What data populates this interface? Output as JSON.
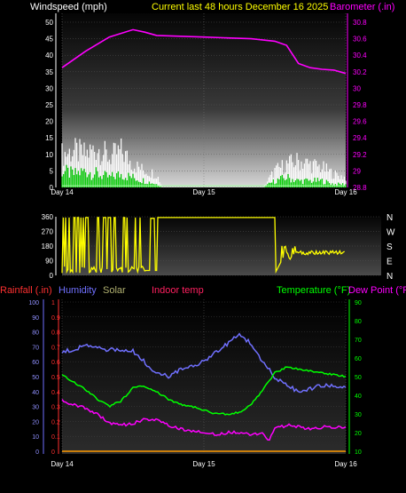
{
  "header": {
    "wind_label": "Windspeed (mph)",
    "title": "Current last 48 hours December 16 2025",
    "baro_label": "Barometer (.in)"
  },
  "legend2": {
    "rainfall": "Rainfall (.in)",
    "humidity": "Humidity",
    "solar": "Solar",
    "indoor": "Indoor temp",
    "temperature": "Temperature (°F)",
    "dewpoint": "Dew Point (°F"
  },
  "colors": {
    "wind_label": "#ffffff",
    "title": "#ffff00",
    "baro": "#ff00ff",
    "rain": "#ff3030",
    "humidity": "#7070ff",
    "solar": "#b0b070",
    "indoor": "#ff2060",
    "temperature": "#00ff00",
    "dewpoint": "#ff00ff",
    "winddir": "#ffff00",
    "gust": "#ffffff",
    "wind_avg": "#00cc00"
  },
  "chart_data": [
    {
      "type": "area",
      "name": "wind-barometer",
      "x_ticks": [
        "Day 14",
        "Day 15",
        "Day 16"
      ],
      "y_left_label": "Windspeed (mph)",
      "y_left_ticks": [
        "0",
        "5",
        "10",
        "15",
        "20",
        "25",
        "30",
        "35",
        "40",
        "45",
        "50"
      ],
      "y_left_lim": [
        0,
        50
      ],
      "y_right_label": "Barometer (.in)",
      "y_right_ticks": [
        "28.8",
        "29",
        "29.2",
        "29.4",
        "29.6",
        "29.8",
        "30",
        "30.2",
        "30.4",
        "30.6",
        "30.8"
      ],
      "y_right_lim": [
        28.8,
        30.8
      ],
      "x_lim": [
        0,
        48
      ],
      "barometer": {
        "x": [
          0,
          4,
          8,
          12,
          14,
          16,
          20,
          24,
          28,
          32,
          36,
          38,
          40,
          42,
          44,
          46,
          48
        ],
        "y": [
          30.25,
          30.45,
          30.62,
          30.71,
          30.68,
          30.64,
          30.63,
          30.62,
          30.61,
          30.6,
          30.57,
          30.52,
          30.3,
          30.25,
          30.23,
          30.22,
          30.18
        ]
      },
      "gust": {
        "x": [
          0,
          2,
          4,
          6,
          8,
          10,
          12,
          14,
          16,
          17,
          18,
          20,
          22,
          24,
          26,
          28,
          30,
          32,
          34,
          36,
          38,
          40,
          42,
          44,
          46,
          48
        ],
        "y": [
          10,
          11,
          10,
          12,
          9,
          11,
          7,
          5,
          4,
          0,
          0,
          0,
          0,
          0,
          0,
          0,
          0,
          0,
          0,
          5,
          7,
          8,
          7,
          6,
          4,
          3
        ]
      },
      "wind_avg": {
        "x": [
          0,
          2,
          4,
          6,
          8,
          10,
          12,
          14,
          16,
          17,
          18,
          20,
          22,
          24,
          26,
          28,
          30,
          32,
          34,
          36,
          38,
          40,
          42,
          44,
          46,
          48
        ],
        "y": [
          5,
          4,
          5,
          4,
          3,
          4,
          3,
          2,
          1,
          0,
          0,
          0,
          0,
          0,
          0,
          0,
          0,
          0,
          0,
          2,
          3,
          2,
          2,
          2,
          1,
          1
        ]
      }
    },
    {
      "type": "scatter",
      "name": "wind-direction",
      "x_ticks": [
        "Day 14",
        "Day 15",
        "Day 16"
      ],
      "y_ticks": [
        "0",
        "90",
        "180",
        "270",
        "360"
      ],
      "y_lim": [
        0,
        360
      ],
      "right_labels": [
        "N",
        "W",
        "S",
        "E",
        "N"
      ],
      "x_lim": [
        0,
        48
      ],
      "direction": {
        "x": [
          0,
          3,
          6,
          9,
          12,
          14,
          15,
          16,
          17,
          20,
          24,
          28,
          32,
          34,
          36,
          37,
          38,
          39,
          40,
          42,
          44,
          46,
          48
        ],
        "y": [
          355,
          20,
          350,
          30,
          340,
          20,
          340,
          350,
          355,
          355,
          355,
          355,
          355,
          355,
          10,
          80,
          170,
          150,
          140,
          140,
          135,
          140,
          140
        ]
      }
    },
    {
      "type": "line",
      "name": "temperature-humidity",
      "x_ticks": [
        "Day 14",
        "Day 15",
        "Day 16"
      ],
      "y_left_ticks": [
        "0",
        "10",
        "20",
        "30",
        "40",
        "50",
        "60",
        "70",
        "80",
        "90",
        "100"
      ],
      "y_left_lim": [
        0,
        100
      ],
      "y_rain_ticks": [
        "0",
        "0.1",
        "0.2",
        "0.3",
        "0.4",
        "0.5",
        "0.6",
        "0.7",
        "0.8",
        "0.9",
        "1"
      ],
      "y_right_ticks": [
        "10",
        "20",
        "30",
        "40",
        "50",
        "60",
        "70",
        "80",
        "90"
      ],
      "y_right_lim": [
        10,
        90
      ],
      "x_lim": [
        0,
        48
      ],
      "series": [
        {
          "name": "Humidity",
          "x": [
            0,
            4,
            8,
            12,
            16,
            18,
            20,
            24,
            28,
            30,
            32,
            34,
            36,
            38,
            40,
            42,
            44,
            46,
            48
          ],
          "y": [
            66,
            71,
            68,
            67,
            52,
            50,
            55,
            60,
            72,
            78,
            72,
            60,
            50,
            44,
            40,
            42,
            44,
            44,
            43
          ]
        },
        {
          "name": "Temperature (°F)",
          "x": [
            0,
            2,
            4,
            6,
            8,
            10,
            12,
            14,
            16,
            18,
            20,
            22,
            24,
            26,
            28,
            30,
            32,
            34,
            36,
            38,
            40,
            42,
            44,
            46,
            48
          ],
          "y": [
            51,
            47,
            43,
            38,
            34,
            37,
            44,
            45,
            42,
            38,
            35,
            34,
            32,
            30,
            30,
            31,
            35,
            43,
            52,
            55,
            54,
            53,
            52,
            51,
            50
          ]
        },
        {
          "name": "Dew Point (°F",
          "x": [
            0,
            2,
            4,
            6,
            8,
            10,
            12,
            14,
            16,
            18,
            20,
            22,
            24,
            26,
            28,
            30,
            32,
            34,
            35,
            36,
            38,
            40,
            42,
            44,
            46,
            48
          ],
          "y": [
            37,
            35,
            33,
            30,
            25,
            24,
            25,
            27,
            27,
            24,
            22,
            21,
            20,
            19,
            20,
            20,
            19,
            20,
            16,
            22,
            24,
            23,
            22,
            23,
            23,
            23
          ]
        },
        {
          "name": "Solar",
          "x": [
            0,
            48
          ],
          "y": [
            0,
            0
          ]
        }
      ]
    }
  ]
}
